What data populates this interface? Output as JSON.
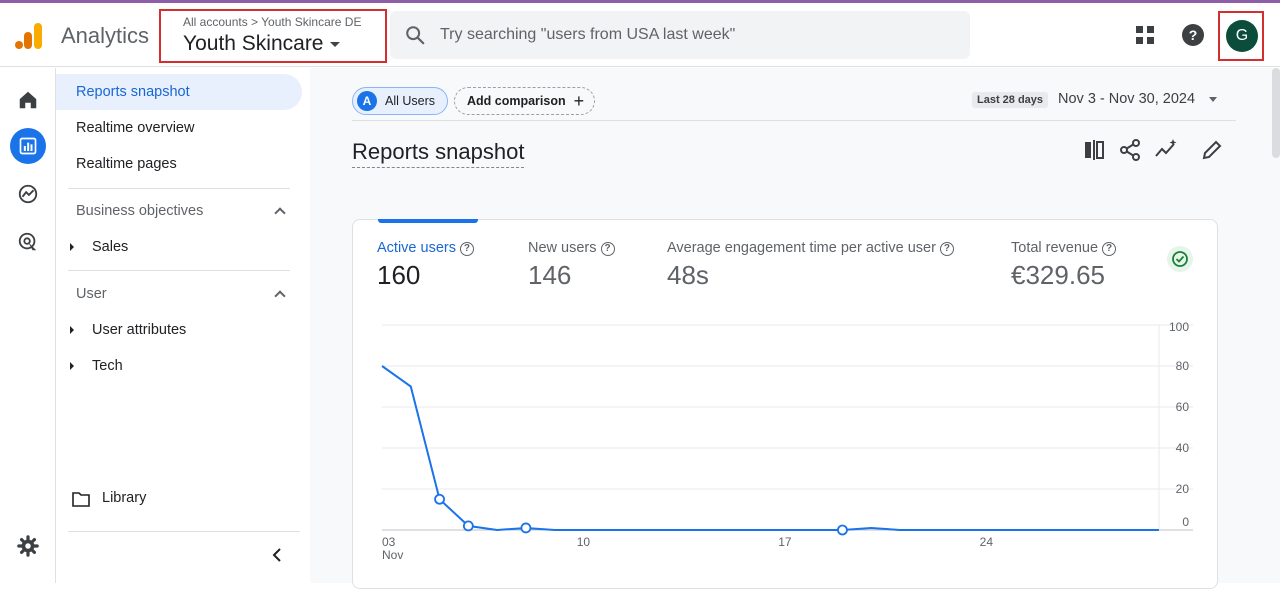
{
  "header": {
    "app_name": "Analytics",
    "breadcrumb": "All accounts > Youth Skincare DE",
    "property_name": "Youth Skincare",
    "search_placeholder": "Try searching \"users from USA last week\"",
    "avatar_letter": "G",
    "colors": {
      "logo_orange": "#f9ab00",
      "logo_dark": "#e37400",
      "avatar_bg": "#0b4d3a",
      "highlight": "#d32f2f",
      "topline": "#8e5fa8"
    },
    "icons": [
      "search-icon",
      "apps-grid-icon",
      "help-icon"
    ]
  },
  "rail": {
    "icons": [
      "home-icon",
      "reports-icon",
      "explore-icon",
      "advertising-icon",
      "settings-icon"
    ],
    "active": "reports-icon"
  },
  "nav": {
    "items": [
      {
        "label": "Reports snapshot",
        "active": true
      },
      {
        "label": "Realtime overview"
      },
      {
        "label": "Realtime pages"
      }
    ],
    "sections": [
      {
        "title": "Business objectives",
        "children": [
          "Sales"
        ]
      },
      {
        "title": "User",
        "children": [
          "User attributes",
          "Tech"
        ]
      }
    ],
    "library": "Library"
  },
  "toolbar": {
    "all_users_badge": "A",
    "all_users_label": "All Users",
    "add_comparison_label": "Add comparison",
    "date_badge": "Last 28 days",
    "date_range": "Nov 3 - Nov 30, 2024"
  },
  "page_title": "Reports snapshot",
  "tools": [
    "compare-columns-icon",
    "share-icon",
    "insights-icon",
    "edit-icon"
  ],
  "metrics": [
    {
      "label": "Active users",
      "value": "160",
      "active": true
    },
    {
      "label": "New users",
      "value": "146"
    },
    {
      "label": "Average engagement time per active user",
      "value": "48s"
    },
    {
      "label": "Total revenue",
      "value": "€329.65"
    }
  ],
  "chart_data": {
    "type": "line",
    "series": [
      {
        "values": [
          80,
          70,
          15,
          2,
          0,
          1,
          0,
          0,
          0,
          0,
          0,
          0,
          0,
          0,
          0,
          0,
          0,
          1,
          0,
          0,
          0,
          0,
          0,
          0,
          0,
          0,
          0,
          0
        ]
      }
    ],
    "marked_points": [
      2,
      3,
      5,
      16
    ],
    "x_ticks": [
      {
        "day": 0,
        "label": "03",
        "sublabel": "Nov"
      },
      {
        "day": 7,
        "label": "10"
      },
      {
        "day": 14,
        "label": "17"
      },
      {
        "day": 21,
        "label": "24"
      }
    ],
    "y_ticks": [
      0,
      20,
      40,
      60,
      80,
      100
    ],
    "ylim": [
      0,
      100
    ],
    "y_axis_side": "right",
    "grid": true,
    "color": "#1a73e8"
  }
}
